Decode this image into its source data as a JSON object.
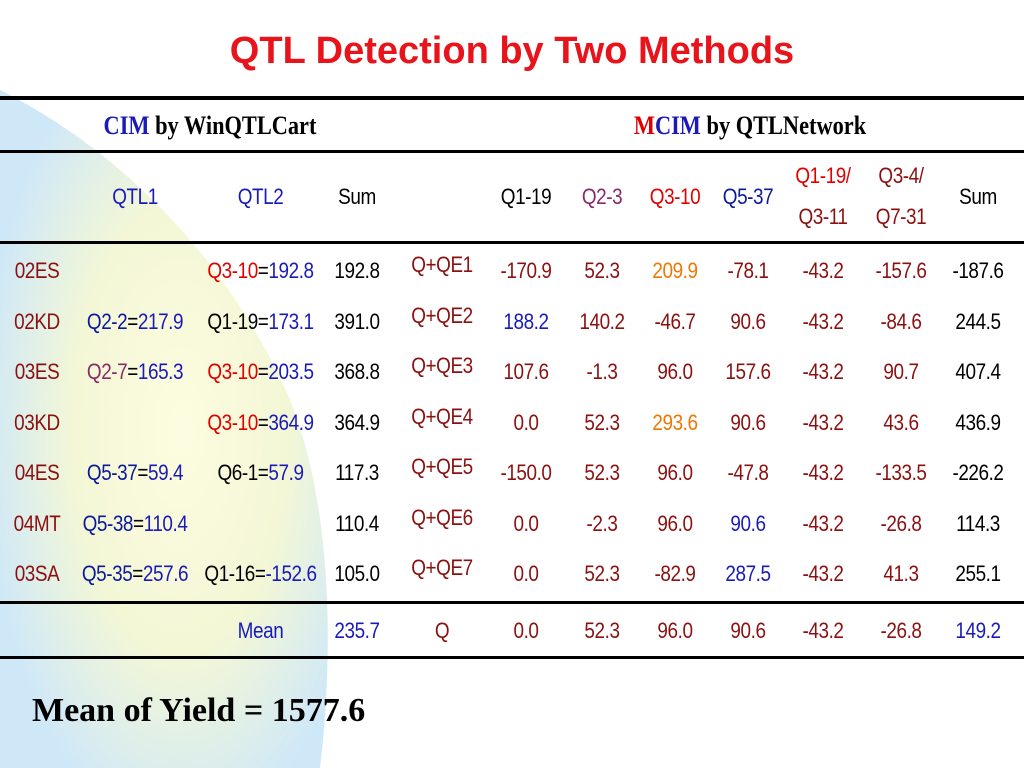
{
  "title": "QTL Detection by Two Methods",
  "colors": {
    "title": "#e8141b",
    "blue": "#1a1ab8",
    "red": "#e00000",
    "purple": "#8a2a6a",
    "orange": "#ee7700",
    "maroon": "#8b1010"
  },
  "groups": {
    "cim": {
      "prefix": "CIM",
      "suffix": " by WinQTLCart"
    },
    "mcim": {
      "prefix_m": "M",
      "prefix_cim": "CIM",
      "suffix": " by QTLNetwork"
    }
  },
  "headers": {
    "qtl1": "QTL1",
    "qtl2": "QTL2",
    "sum": "Sum",
    "q1_19": "Q1-19",
    "q2_3": "Q2-3",
    "q3_10": "Q3-10",
    "q5_37": "Q5-37",
    "q1_19_q3_11_a": "Q1-19/",
    "q1_19_q3_11_b": "Q3-11",
    "q3_4_q7_31_a": "Q3-4/",
    "q3_4_q7_31_b": "Q7-31",
    "sum2": "Sum"
  },
  "rows": [
    {
      "env": "02ES",
      "q1a": "",
      "q1b": "",
      "q2a": "Q3-10",
      "q2b": "192.8",
      "sum": "192.8",
      "qe": "Q+QE1",
      "c1": "-170.9",
      "c2": "52.3",
      "c3": "209.9",
      "c4": "-78.1",
      "c5": "-43.2",
      "c6": "-157.6",
      "c7": "-187.6"
    },
    {
      "env": "02KD",
      "q1a": "Q2-2",
      "q1b": "217.9",
      "q2a": "Q1-19",
      "q2b": "173.1",
      "sum": "391.0",
      "qe": "Q+QE2",
      "c1": "188.2",
      "c2": "140.2",
      "c3": "-46.7",
      "c4": "90.6",
      "c5": "-43.2",
      "c6": "-84.6",
      "c7": "244.5"
    },
    {
      "env": "03ES",
      "q1a": "Q2-7",
      "q1b": "165.3",
      "q2a": "Q3-10",
      "q2b": "203.5",
      "sum": "368.8",
      "qe": "Q+QE3",
      "c1": "107.6",
      "c2": "-1.3",
      "c3": "96.0",
      "c4": "157.6",
      "c5": "-43.2",
      "c6": "90.7",
      "c7": "407.4"
    },
    {
      "env": "03KD",
      "q1a": "",
      "q1b": "",
      "q2a": "Q3-10",
      "q2b": "364.9",
      "sum": "364.9",
      "qe": "Q+QE4",
      "c1": "0.0",
      "c2": "52.3",
      "c3": "293.6",
      "c4": "90.6",
      "c5": "-43.2",
      "c6": "43.6",
      "c7": "436.9"
    },
    {
      "env": "04ES",
      "q1a": "Q5-37",
      "q1b": "59.4",
      "q2a": "Q6-1",
      "q2b": "57.9",
      "sum": "117.3",
      "qe": "Q+QE5",
      "c1": "-150.0",
      "c2": "52.3",
      "c3": "96.0",
      "c4": "-47.8",
      "c5": "-43.2",
      "c6": "-133.5",
      "c7": "-226.2"
    },
    {
      "env": "04MT",
      "q1a": "Q5-38",
      "q1b": "110.4",
      "q2a": "",
      "q2b": "",
      "sum": "110.4",
      "qe": "Q+QE6",
      "c1": "0.0",
      "c2": "-2.3",
      "c3": "96.0",
      "c4": "90.6",
      "c5": "-43.2",
      "c6": "-26.8",
      "c7": "114.3"
    },
    {
      "env": "03SA",
      "q1a": "Q5-35",
      "q1b": "257.6",
      "q2a": "Q1-16",
      "q2b": "-152.6",
      "sum": "105.0",
      "qe": "Q+QE7",
      "c1": "0.0",
      "c2": "52.3",
      "c3": "-82.9",
      "c4": "287.5",
      "c5": "-43.2",
      "c6": "41.3",
      "c7": "255.1"
    }
  ],
  "mean_row": {
    "label": "Mean",
    "sum": "235.7",
    "qe": "Q",
    "c1": "0.0",
    "c2": "52.3",
    "c3": "96.0",
    "c4": "90.6",
    "c5": "-43.2",
    "c6": "-26.8",
    "c7": "149.2"
  },
  "footer": "Mean of Yield = 1577.6"
}
